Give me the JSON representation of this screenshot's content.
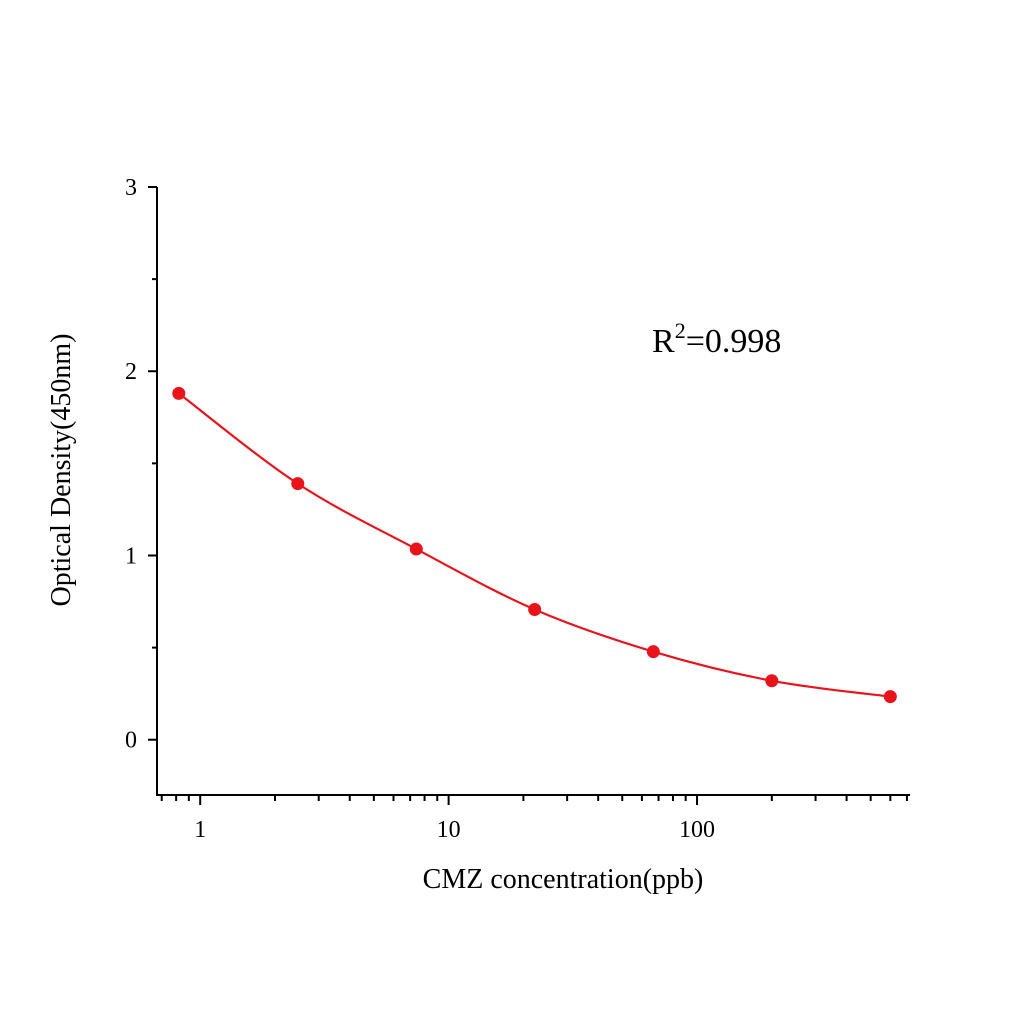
{
  "chart_data": {
    "type": "scatter",
    "title": "",
    "xlabel": "CMZ concentration(ppb)",
    "ylabel": "Optical Density(450nm)",
    "x_scale": "log",
    "xlim": [
      0.67,
      720
    ],
    "ylim": [
      -0.3,
      3
    ],
    "x_ticks": [
      1,
      10,
      100
    ],
    "x_tick_labels": [
      "1",
      "10",
      "100"
    ],
    "y_ticks": [
      0,
      1,
      2,
      3
    ],
    "y_tick_labels": [
      "0",
      "1",
      "2",
      "3"
    ],
    "grid": false,
    "legend": "none",
    "annotation": {
      "base": "R",
      "sup": "2",
      "rest": "=0.998"
    },
    "color": "#e8141c",
    "series": [
      {
        "x": [
          0.82,
          2.47,
          7.41,
          22.2,
          66.7,
          200,
          600
        ],
        "y": [
          1.88,
          1.39,
          1.035,
          0.707,
          0.478,
          0.32,
          0.234
        ],
        "fit_line": true
      }
    ]
  }
}
